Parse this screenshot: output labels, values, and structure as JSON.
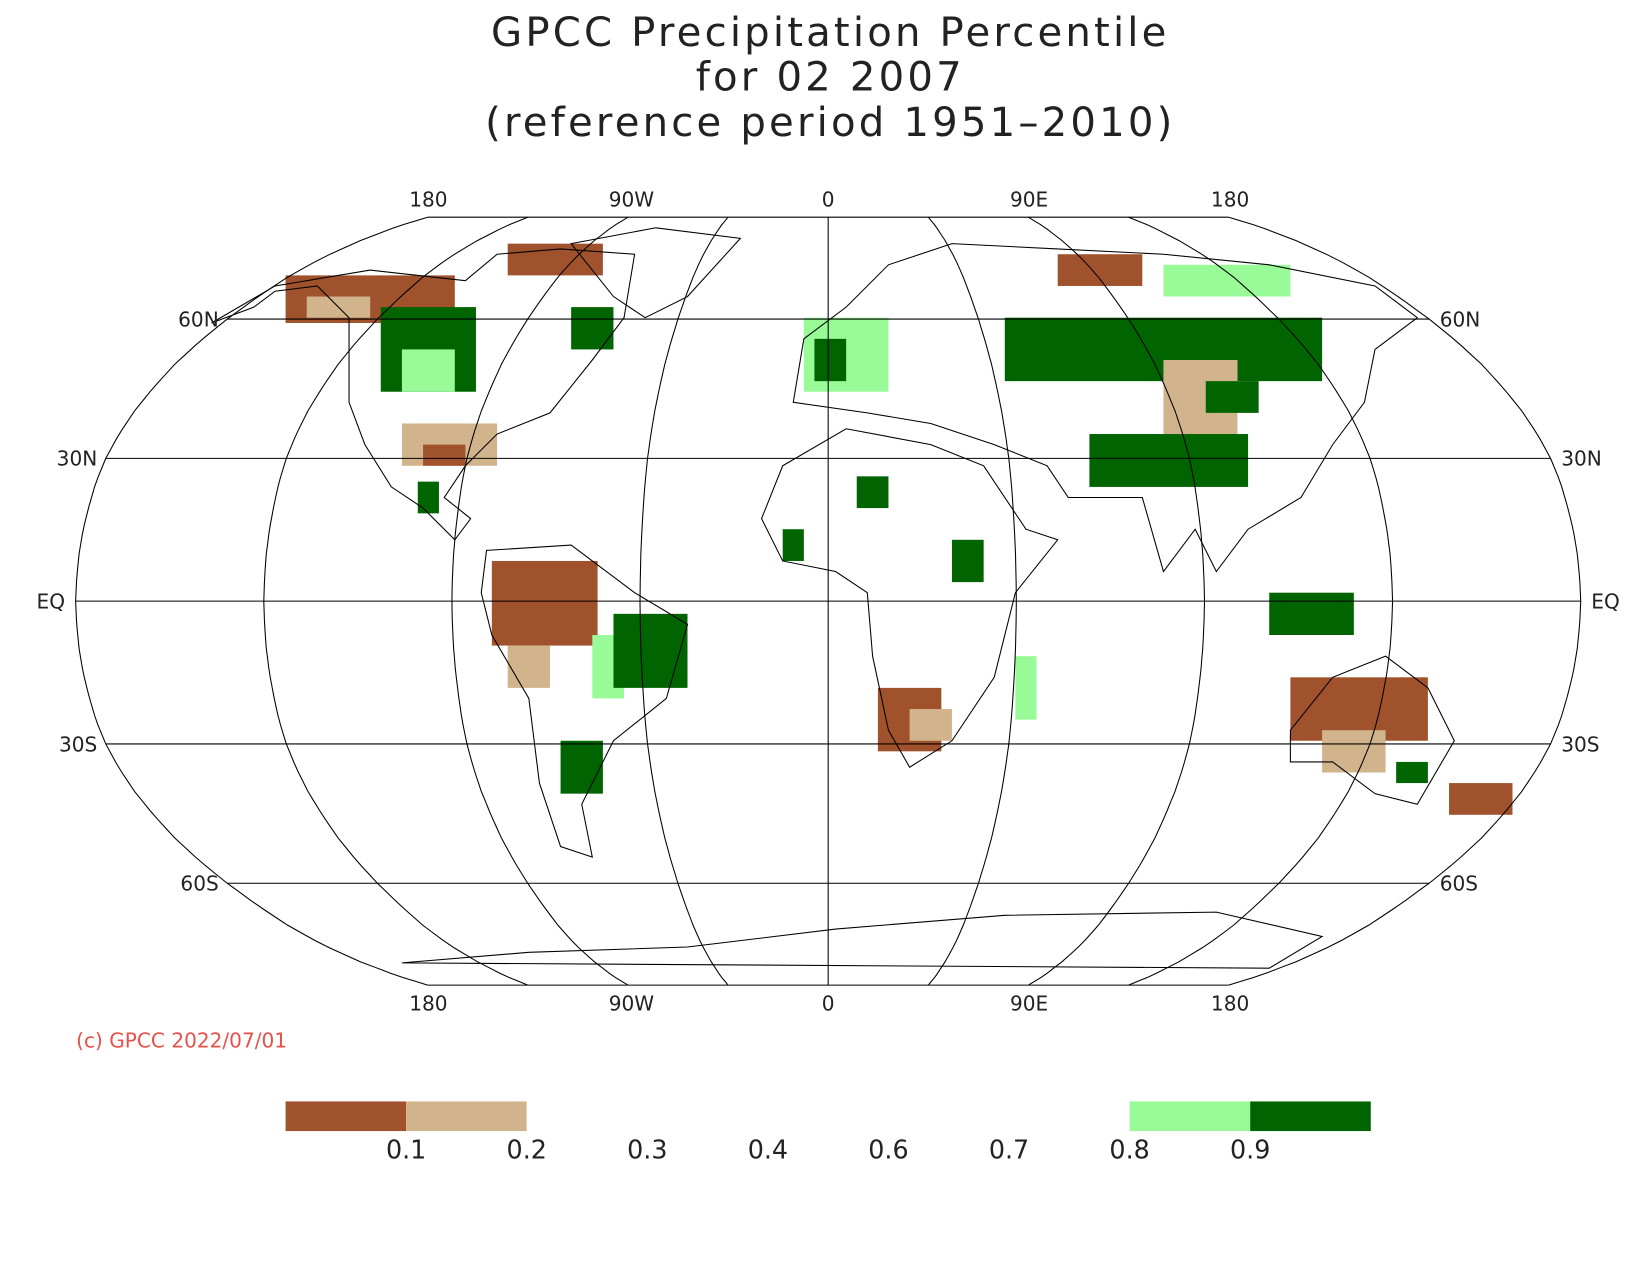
{
  "title_lines": [
    "GPCC Precipitation Percentile",
    "for 02 2007",
    "(reference period 1951–2010)"
  ],
  "map": {
    "lon_labels_top": [
      "180",
      "90W",
      "0",
      "90E",
      "180"
    ],
    "lon_labels_bottom": [
      "180",
      "90W",
      "0",
      "90E",
      "180"
    ],
    "lat_labels_left": [
      "60N",
      "30N",
      "EQ",
      "30S",
      "60S"
    ],
    "lat_labels_right": [
      "60N",
      "30N",
      "EQ",
      "30S",
      "60S"
    ]
  },
  "copyright": "(c) GPCC 2022/07/01",
  "legend": {
    "colors": [
      "#a0522d",
      "#d2b48c",
      "#ffffff",
      "#ffffff",
      "#ffffff",
      "#ffffff",
      "#ffffff",
      "#98fb98",
      "#006400"
    ],
    "labels": [
      "0.1",
      "0.2",
      "0.3",
      "0.4",
      "0.6",
      "0.7",
      "0.8",
      "0.9"
    ]
  }
}
